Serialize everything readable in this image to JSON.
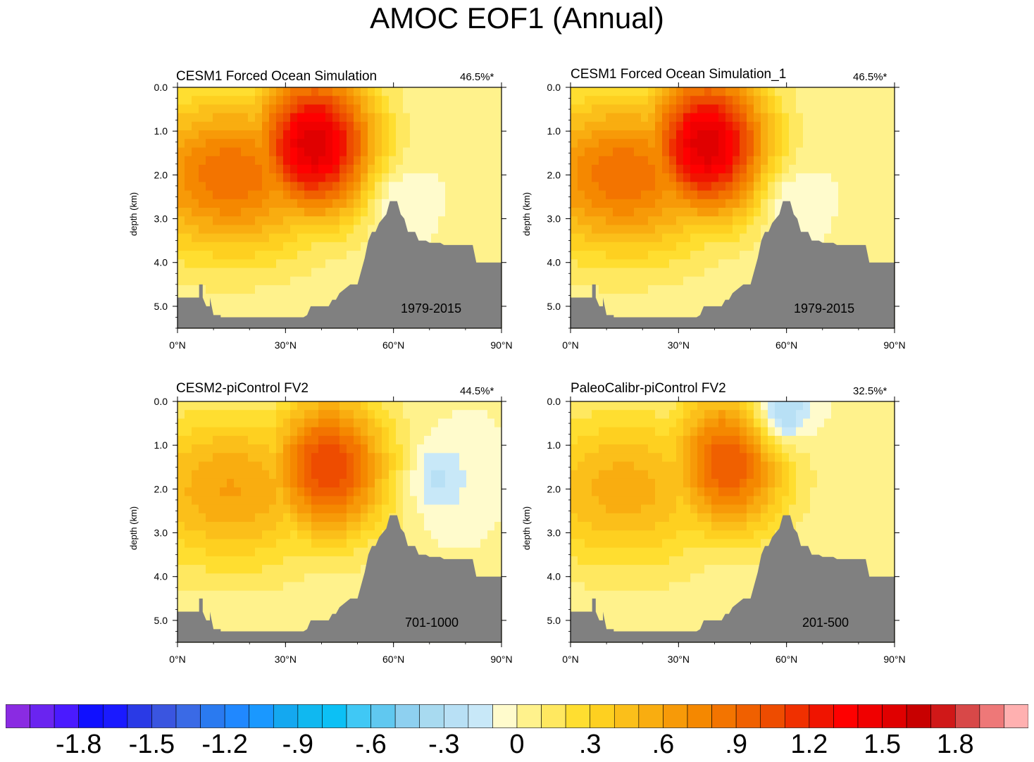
{
  "title": "AMOC EOF1 (Annual)",
  "colorbar": {
    "labels": [
      "-1.8",
      "-1.5",
      "-1.2",
      "-.9",
      "-.6",
      "-.3",
      "0",
      ".3",
      ".6",
      ".9",
      "1.2",
      "1.5",
      "1.8"
    ],
    "label_box_index": [
      3,
      6,
      9,
      12,
      15,
      18,
      21,
      24,
      27,
      30,
      33,
      36,
      39
    ],
    "colors": [
      "#8a2be2",
      "#6a24f0",
      "#4a1aff",
      "#1010ff",
      "#1a1aff",
      "#2a3ae6",
      "#3a55e0",
      "#3a6ae6",
      "#2a7af0",
      "#2088ff",
      "#1a98ff",
      "#14a8f0",
      "#10b8f0",
      "#0cc0f5",
      "#40c8f5",
      "#60c8f0",
      "#8ed0f0",
      "#a8daf0",
      "#b8e0f5",
      "#c8e8f8",
      "#fffbcc",
      "#fff28c",
      "#ffe860",
      "#ffde30",
      "#fed020",
      "#fbbf1a",
      "#f9ad10",
      "#f79a08",
      "#f58800",
      "#f37400",
      "#f06000",
      "#ee4c00",
      "#f03000",
      "#f01400",
      "#ff0000",
      "#f00000",
      "#e00000",
      "#c80000",
      "#d01818",
      "#d84848",
      "#ee7878",
      "#ffb0b0"
    ]
  },
  "chart_data": [
    {
      "type": "contour",
      "title": "CESM1 Forced Ocean Simulation",
      "variance": "46.5%*",
      "period": "1979-2015",
      "ylabel": "depth (km)",
      "xlabel": "",
      "x_ticks": [
        "0°N",
        "30°N",
        "60°N",
        "90°N"
      ],
      "x_tick_values": [
        0,
        30,
        60,
        90
      ],
      "y_ticks": [
        "0.0",
        "1.0",
        "2.0",
        "3.0",
        "4.0",
        "5.0"
      ],
      "y_tick_values": [
        0,
        1,
        2,
        3,
        4,
        5
      ],
      "xlim": [
        0,
        90
      ],
      "ylim": [
        5.5,
        0
      ],
      "max": {
        "lat": 38,
        "depth": 1.3,
        "value": 1.6
      },
      "min": {
        "lat": 60,
        "depth": 2.5,
        "value": -0.2
      },
      "bathymetry": [
        [
          0,
          4.8
        ],
        [
          6,
          4.8
        ],
        [
          6,
          4.5
        ],
        [
          7,
          4.5
        ],
        [
          7,
          4.8
        ],
        [
          8,
          5.0
        ],
        [
          9,
          5.0
        ],
        [
          9,
          4.8
        ],
        [
          10,
          5.2
        ],
        [
          12,
          5.2
        ],
        [
          12,
          5.25
        ],
        [
          35,
          5.25
        ],
        [
          36,
          5.2
        ],
        [
          37,
          5.0
        ],
        [
          42,
          5.0
        ],
        [
          43,
          4.85
        ],
        [
          44,
          4.85
        ],
        [
          45,
          4.7
        ],
        [
          48,
          4.5
        ],
        [
          50,
          4.5
        ],
        [
          51,
          4.2
        ],
        [
          52,
          3.9
        ],
        [
          53,
          3.5
        ],
        [
          54,
          3.3
        ],
        [
          55,
          3.3
        ],
        [
          56,
          3.1
        ],
        [
          57,
          3.0
        ],
        [
          58,
          2.9
        ],
        [
          59,
          2.6
        ],
        [
          61,
          2.6
        ],
        [
          62,
          2.9
        ],
        [
          63,
          3.0
        ],
        [
          64,
          3.3
        ],
        [
          66,
          3.3
        ],
        [
          67,
          3.5
        ],
        [
          69,
          3.5
        ],
        [
          70,
          3.55
        ],
        [
          73,
          3.55
        ],
        [
          74,
          3.6
        ],
        [
          82,
          3.6
        ],
        [
          83,
          4.0
        ],
        [
          90,
          4.0
        ]
      ]
    },
    {
      "type": "contour",
      "title": "CESM1 Forced Ocean Simulation_1",
      "variance": "46.5%*",
      "period": "1979-2015",
      "ylabel": "depth (km)",
      "xlabel": "",
      "x_ticks": [
        "0°N",
        "30°N",
        "60°N",
        "90°N"
      ],
      "x_tick_values": [
        0,
        30,
        60,
        90
      ],
      "y_ticks": [
        "0.0",
        "1.0",
        "2.0",
        "3.0",
        "4.0",
        "5.0"
      ],
      "y_tick_values": [
        0,
        1,
        2,
        3,
        4,
        5
      ],
      "xlim": [
        0,
        90
      ],
      "ylim": [
        5.5,
        0
      ],
      "max": {
        "lat": 38,
        "depth": 1.3,
        "value": 1.6
      },
      "min": {
        "lat": 60,
        "depth": 2.5,
        "value": -0.2
      },
      "bathymetry": [
        [
          0,
          4.8
        ],
        [
          6,
          4.8
        ],
        [
          6,
          4.5
        ],
        [
          7,
          4.5
        ],
        [
          7,
          4.8
        ],
        [
          8,
          5.0
        ],
        [
          9,
          5.0
        ],
        [
          9,
          4.8
        ],
        [
          10,
          5.2
        ],
        [
          12,
          5.2
        ],
        [
          12,
          5.25
        ],
        [
          35,
          5.25
        ],
        [
          36,
          5.2
        ],
        [
          37,
          5.0
        ],
        [
          42,
          5.0
        ],
        [
          43,
          4.85
        ],
        [
          44,
          4.85
        ],
        [
          45,
          4.7
        ],
        [
          48,
          4.5
        ],
        [
          50,
          4.5
        ],
        [
          51,
          4.2
        ],
        [
          52,
          3.9
        ],
        [
          53,
          3.5
        ],
        [
          54,
          3.3
        ],
        [
          55,
          3.3
        ],
        [
          56,
          3.1
        ],
        [
          57,
          3.0
        ],
        [
          58,
          2.9
        ],
        [
          59,
          2.6
        ],
        [
          61,
          2.6
        ],
        [
          62,
          2.9
        ],
        [
          63,
          3.0
        ],
        [
          64,
          3.3
        ],
        [
          66,
          3.3
        ],
        [
          67,
          3.5
        ],
        [
          69,
          3.5
        ],
        [
          70,
          3.55
        ],
        [
          73,
          3.55
        ],
        [
          74,
          3.6
        ],
        [
          82,
          3.6
        ],
        [
          83,
          4.0
        ],
        [
          90,
          4.0
        ]
      ]
    },
    {
      "type": "contour",
      "title": "CESM2-piControl FV2",
      "variance": "44.5%*",
      "period": "701-1000",
      "ylabel": "depth (km)",
      "xlabel": "",
      "x_ticks": [
        "0°N",
        "30°N",
        "60°N",
        "90°N"
      ],
      "x_tick_values": [
        0,
        30,
        60,
        90
      ],
      "y_ticks": [
        "0.0",
        "1.0",
        "2.0",
        "3.0",
        "4.0",
        "5.0"
      ],
      "y_tick_values": [
        0,
        1,
        2,
        3,
        4,
        5
      ],
      "xlim": [
        0,
        90
      ],
      "ylim": [
        5.5,
        0
      ],
      "max": {
        "lat": 42,
        "depth": 1.5,
        "value": 1.1
      },
      "min": {
        "lat": 72,
        "depth": 1.75,
        "value": -0.25
      },
      "bathymetry": [
        [
          0,
          4.8
        ],
        [
          6,
          4.8
        ],
        [
          6,
          4.5
        ],
        [
          7,
          4.5
        ],
        [
          7,
          4.8
        ],
        [
          8,
          5.0
        ],
        [
          9,
          5.0
        ],
        [
          9,
          4.8
        ],
        [
          10,
          5.2
        ],
        [
          12,
          5.2
        ],
        [
          12,
          5.25
        ],
        [
          35,
          5.25
        ],
        [
          36,
          5.2
        ],
        [
          37,
          5.0
        ],
        [
          42,
          5.0
        ],
        [
          43,
          4.85
        ],
        [
          44,
          4.85
        ],
        [
          45,
          4.7
        ],
        [
          48,
          4.5
        ],
        [
          50,
          4.5
        ],
        [
          51,
          4.2
        ],
        [
          52,
          3.9
        ],
        [
          53,
          3.5
        ],
        [
          54,
          3.3
        ],
        [
          55,
          3.3
        ],
        [
          56,
          3.1
        ],
        [
          57,
          3.0
        ],
        [
          58,
          2.9
        ],
        [
          59,
          2.6
        ],
        [
          61,
          2.6
        ],
        [
          62,
          2.9
        ],
        [
          63,
          3.0
        ],
        [
          64,
          3.3
        ],
        [
          66,
          3.3
        ],
        [
          67,
          3.5
        ],
        [
          69,
          3.5
        ],
        [
          70,
          3.55
        ],
        [
          73,
          3.55
        ],
        [
          74,
          3.6
        ],
        [
          82,
          3.6
        ],
        [
          83,
          4.0
        ],
        [
          90,
          4.0
        ]
      ]
    },
    {
      "type": "contour",
      "title": "PaleoCalibr-piControl FV2",
      "variance": "32.5%*",
      "period": "201-500",
      "ylabel": "depth (km)",
      "xlabel": "",
      "x_ticks": [
        "0°N",
        "30°N",
        "60°N",
        "90°N"
      ],
      "x_tick_values": [
        0,
        30,
        60,
        90
      ],
      "y_ticks": [
        "0.0",
        "1.0",
        "2.0",
        "3.0",
        "4.0",
        "5.0"
      ],
      "y_tick_values": [
        0,
        1,
        2,
        3,
        4,
        5
      ],
      "xlim": [
        0,
        90
      ],
      "ylim": [
        5.5,
        0
      ],
      "max": {
        "lat": 44,
        "depth": 1.4,
        "value": 1.0
      },
      "min": {
        "lat": 58,
        "depth": 0.3,
        "value": -0.55
      },
      "bathymetry": [
        [
          0,
          4.8
        ],
        [
          6,
          4.8
        ],
        [
          6,
          4.5
        ],
        [
          7,
          4.5
        ],
        [
          7,
          4.8
        ],
        [
          8,
          5.0
        ],
        [
          9,
          5.0
        ],
        [
          9,
          4.8
        ],
        [
          10,
          5.2
        ],
        [
          12,
          5.2
        ],
        [
          12,
          5.25
        ],
        [
          35,
          5.25
        ],
        [
          36,
          5.2
        ],
        [
          37,
          5.0
        ],
        [
          42,
          5.0
        ],
        [
          43,
          4.85
        ],
        [
          44,
          4.85
        ],
        [
          45,
          4.7
        ],
        [
          48,
          4.5
        ],
        [
          50,
          4.5
        ],
        [
          51,
          4.2
        ],
        [
          52,
          3.9
        ],
        [
          53,
          3.5
        ],
        [
          54,
          3.3
        ],
        [
          55,
          3.3
        ],
        [
          56,
          3.1
        ],
        [
          57,
          3.0
        ],
        [
          58,
          2.9
        ],
        [
          59,
          2.6
        ],
        [
          61,
          2.6
        ],
        [
          62,
          2.9
        ],
        [
          63,
          3.0
        ],
        [
          64,
          3.3
        ],
        [
          66,
          3.3
        ],
        [
          67,
          3.5
        ],
        [
          69,
          3.5
        ],
        [
          70,
          3.55
        ],
        [
          73,
          3.55
        ],
        [
          74,
          3.6
        ],
        [
          82,
          3.6
        ],
        [
          83,
          4.0
        ],
        [
          90,
          4.0
        ]
      ]
    }
  ]
}
